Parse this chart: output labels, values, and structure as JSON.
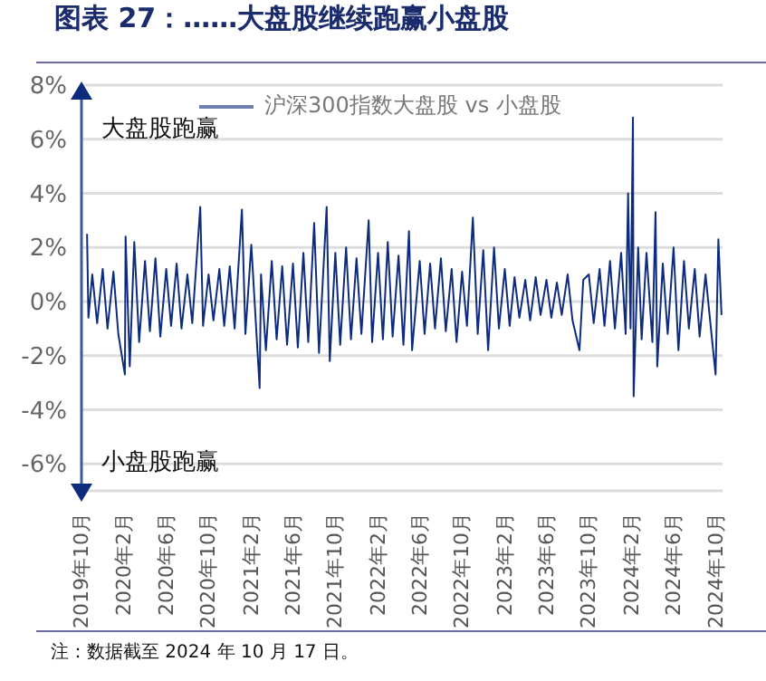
{
  "chart_data": {
    "type": "line",
    "title": "图表 27：……大盘股继续跑赢小盘股",
    "x": [
      "2019-10-17",
      "2019-10-21",
      "2019-11-01",
      "2019-11-15",
      "2019-12-01",
      "2019-12-15",
      "2020-01-01",
      "2020-01-15",
      "2020-02-03",
      "2020-02-05",
      "2020-02-17",
      "2020-03-01",
      "2020-03-15",
      "2020-04-01",
      "2020-04-15",
      "2020-05-01",
      "2020-05-15",
      "2020-06-01",
      "2020-06-15",
      "2020-07-01",
      "2020-07-15",
      "2020-08-01",
      "2020-08-15",
      "2020-09-07",
      "2020-09-15",
      "2020-10-01",
      "2020-10-15",
      "2020-11-01",
      "2020-11-15",
      "2020-12-01",
      "2020-12-15",
      "2021-01-05",
      "2021-01-15",
      "2021-02-01",
      "2021-02-25",
      "2021-03-01",
      "2021-03-15",
      "2021-04-01",
      "2021-04-15",
      "2021-05-01",
      "2021-05-15",
      "2021-06-01",
      "2021-06-15",
      "2021-07-01",
      "2021-07-15",
      "2021-08-01",
      "2021-08-15",
      "2021-09-06",
      "2021-09-15",
      "2021-10-01",
      "2021-10-15",
      "2021-11-01",
      "2021-11-15",
      "2021-12-01",
      "2021-12-15",
      "2022-01-05",
      "2022-01-15",
      "2022-02-01",
      "2022-02-15",
      "2022-03-01",
      "2022-03-15",
      "2022-04-01",
      "2022-04-15",
      "2022-05-01",
      "2022-05-10",
      "2022-06-01",
      "2022-06-15",
      "2022-07-01",
      "2022-07-15",
      "2022-08-01",
      "2022-08-15",
      "2022-09-01",
      "2022-09-15",
      "2022-10-01",
      "2022-10-15",
      "2022-11-01",
      "2022-11-15",
      "2022-12-01",
      "2022-12-15",
      "2023-01-01",
      "2023-01-15",
      "2023-02-01",
      "2023-02-15",
      "2023-03-01",
      "2023-03-15",
      "2023-04-01",
      "2023-04-15",
      "2023-05-01",
      "2023-05-15",
      "2023-06-01",
      "2023-06-15",
      "2023-07-01",
      "2023-07-15",
      "2023-08-01",
      "2023-08-15",
      "2023-09-04",
      "2023-09-15",
      "2023-10-01",
      "2023-10-15",
      "2023-11-01",
      "2023-11-15",
      "2023-12-01",
      "2023-12-15",
      "2024-01-02",
      "2024-01-15",
      "2024-01-22",
      "2024-01-29",
      "2024-02-05",
      "2024-02-07",
      "2024-02-20",
      "2024-03-01",
      "2024-03-15",
      "2024-04-01",
      "2024-04-10",
      "2024-04-15",
      "2024-05-01",
      "2024-05-15",
      "2024-06-01",
      "2024-06-15",
      "2024-07-01",
      "2024-07-15",
      "2024-08-01",
      "2024-08-15",
      "2024-09-01",
      "2024-09-15",
      "2024-09-30",
      "2024-10-08",
      "2024-10-17"
    ],
    "series": [
      {
        "name": "沪深300指数大盘股 vs 小盘股",
        "color": "#0d2c7d",
        "values": [
          2.5,
          -0.6,
          1.0,
          -0.8,
          1.2,
          -1.0,
          1.1,
          -1.2,
          -2.7,
          2.4,
          -2.4,
          2.2,
          -1.5,
          1.5,
          -1.1,
          1.6,
          -1.3,
          1.2,
          -0.9,
          1.4,
          -1.0,
          1.0,
          -0.8,
          3.5,
          -0.9,
          1.0,
          -0.7,
          1.2,
          -0.9,
          1.3,
          -1.0,
          3.4,
          -1.2,
          2.1,
          -3.2,
          1.0,
          -1.8,
          1.5,
          -1.4,
          1.3,
          -1.6,
          1.4,
          -1.7,
          1.8,
          -1.5,
          2.9,
          -1.9,
          3.5,
          -2.2,
          1.8,
          -1.6,
          2.0,
          -1.4,
          1.6,
          -1.2,
          3.0,
          -1.5,
          1.8,
          -1.4,
          2.2,
          -1.3,
          1.7,
          -1.6,
          2.6,
          -1.8,
          1.5,
          -1.2,
          1.4,
          -1.0,
          1.6,
          -1.1,
          1.2,
          -1.5,
          1.1,
          -0.9,
          3.1,
          -1.2,
          1.9,
          -1.8,
          2.0,
          -1.0,
          1.2,
          -0.9,
          0.9,
          -0.6,
          0.8,
          -0.7,
          0.9,
          -0.5,
          0.8,
          -0.6,
          0.7,
          -0.5,
          1.0,
          -0.7,
          -1.8,
          0.8,
          1.0,
          -0.8,
          1.2,
          -0.9,
          1.5,
          -1.0,
          1.8,
          -1.2,
          4.0,
          -1.0,
          6.8,
          -3.5,
          2.0,
          -1.4,
          1.8,
          -1.5,
          3.3,
          -2.4,
          1.4,
          -1.2,
          2.0,
          -1.8,
          1.5,
          -1.0,
          1.2,
          -1.3,
          1.0,
          -0.8,
          -2.7,
          2.3,
          -0.5
        ]
      }
    ],
    "xlim": [
      "2019-10-01",
      "2024-10-20"
    ],
    "xticks": [
      {
        "value": "2019-10",
        "label": "2019年10月"
      },
      {
        "value": "2020-02",
        "label": "2020年2月"
      },
      {
        "value": "2020-06",
        "label": "2020年6月"
      },
      {
        "value": "2020-10",
        "label": "2020年10月"
      },
      {
        "value": "2021-02",
        "label": "2021年2月"
      },
      {
        "value": "2021-06",
        "label": "2021年6月"
      },
      {
        "value": "2021-10",
        "label": "2021年10月"
      },
      {
        "value": "2022-02",
        "label": "2022年2月"
      },
      {
        "value": "2022-06",
        "label": "2022年6月"
      },
      {
        "value": "2022-10",
        "label": "2022年10月"
      },
      {
        "value": "2023-02",
        "label": "2023年2月"
      },
      {
        "value": "2023-06",
        "label": "2023年6月"
      },
      {
        "value": "2023-10",
        "label": "2023年10月"
      },
      {
        "value": "2024-02",
        "label": "2024年2月"
      },
      {
        "value": "2024-06",
        "label": "2024年6月"
      },
      {
        "value": "2024-10",
        "label": "2024年10月"
      }
    ],
    "ylim": [
      -7,
      8
    ],
    "yticks": [
      {
        "value": -6,
        "label": "-6%"
      },
      {
        "value": -4,
        "label": "-4%"
      },
      {
        "value": -2,
        "label": "-2%"
      },
      {
        "value": 0,
        "label": "0%"
      },
      {
        "value": 2,
        "label": "2%"
      },
      {
        "value": 4,
        "label": "4%"
      },
      {
        "value": 6,
        "label": "6%"
      },
      {
        "value": 8,
        "label": "8%"
      }
    ],
    "grid": "y",
    "legend": "top",
    "marker": "none",
    "line_style": "solid",
    "annotations": [
      "大盘股跑赢",
      "小盘股跑赢",
      "注：数据截至 2024 年 10 月 17 日。"
    ]
  }
}
